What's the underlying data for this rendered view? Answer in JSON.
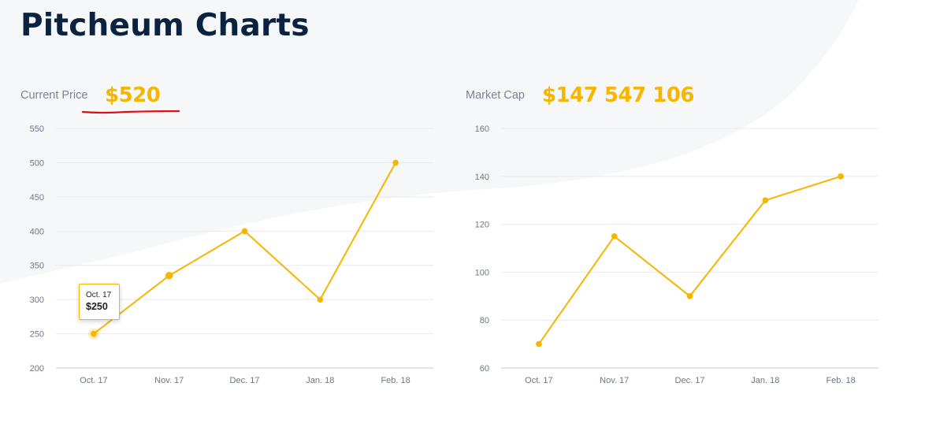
{
  "page": {
    "title": "Pitcheum Charts"
  },
  "colors": {
    "accent": "#f7b500",
    "title": "#0c2340",
    "underline": "#e01010"
  },
  "current_price": {
    "label": "Current Price",
    "value": "$520",
    "tooltip": {
      "date": "Oct. 17",
      "value": "$250"
    }
  },
  "market_cap": {
    "label": "Market Cap",
    "value": "$147 547 106"
  },
  "chart_data": [
    {
      "type": "line",
      "categories": [
        "Oct. 17",
        "Nov. 17",
        "Dec. 17",
        "Jan. 18",
        "Feb. 18"
      ],
      "series": [
        {
          "values": [
            250,
            335,
            400,
            300,
            500
          ]
        }
      ],
      "yticks": [
        200,
        250,
        300,
        350,
        400,
        450,
        500,
        550
      ],
      "ylim": [
        200,
        550
      ],
      "grid": true,
      "highlight_index": 0
    },
    {
      "type": "line",
      "categories": [
        "Oct. 17",
        "Nov. 17",
        "Dec. 17",
        "Jan. 18",
        "Feb. 18"
      ],
      "series": [
        {
          "values": [
            70,
            115,
            90,
            130,
            140
          ]
        }
      ],
      "yticks": [
        60,
        80,
        100,
        120,
        140,
        160
      ],
      "ylim": [
        60,
        160
      ],
      "grid": true
    }
  ]
}
